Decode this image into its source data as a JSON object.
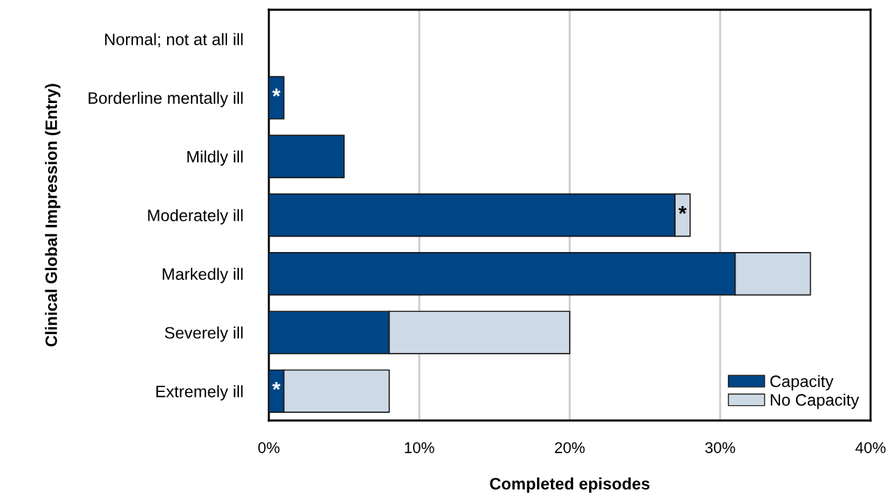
{
  "chart_data": {
    "type": "bar",
    "orientation": "horizontal",
    "stacked": true,
    "categories": [
      "Normal; not at all ill",
      "Borderline mentally ill",
      "Mildly ill",
      "Moderately ill",
      "Markedly ill",
      "Severely ill",
      "Extremely ill"
    ],
    "series": [
      {
        "name": "Capacity",
        "color": "#004586",
        "values": [
          0,
          1,
          5,
          27,
          31,
          8,
          1
        ],
        "value_labels": [
          null,
          "*",
          null,
          null,
          null,
          null,
          "*"
        ]
      },
      {
        "name": "No Capacity",
        "color": "#cdd9e5",
        "values": [
          0,
          0,
          0,
          1,
          5,
          12,
          7
        ],
        "value_labels": [
          null,
          null,
          null,
          "*",
          null,
          null,
          null
        ]
      }
    ],
    "xlim": [
      0,
      40
    ],
    "xticks": [
      {
        "value": 0,
        "label": "0%"
      },
      {
        "value": 10,
        "label": "10%"
      },
      {
        "value": 20,
        "label": "20%"
      },
      {
        "value": 30,
        "label": "30%"
      },
      {
        "value": 40,
        "label": "40%"
      }
    ],
    "xlabel": "Completed episodes",
    "ylabel": "Clinical Global Impression (Entry)",
    "grid": "x",
    "legend": "bottom right"
  }
}
